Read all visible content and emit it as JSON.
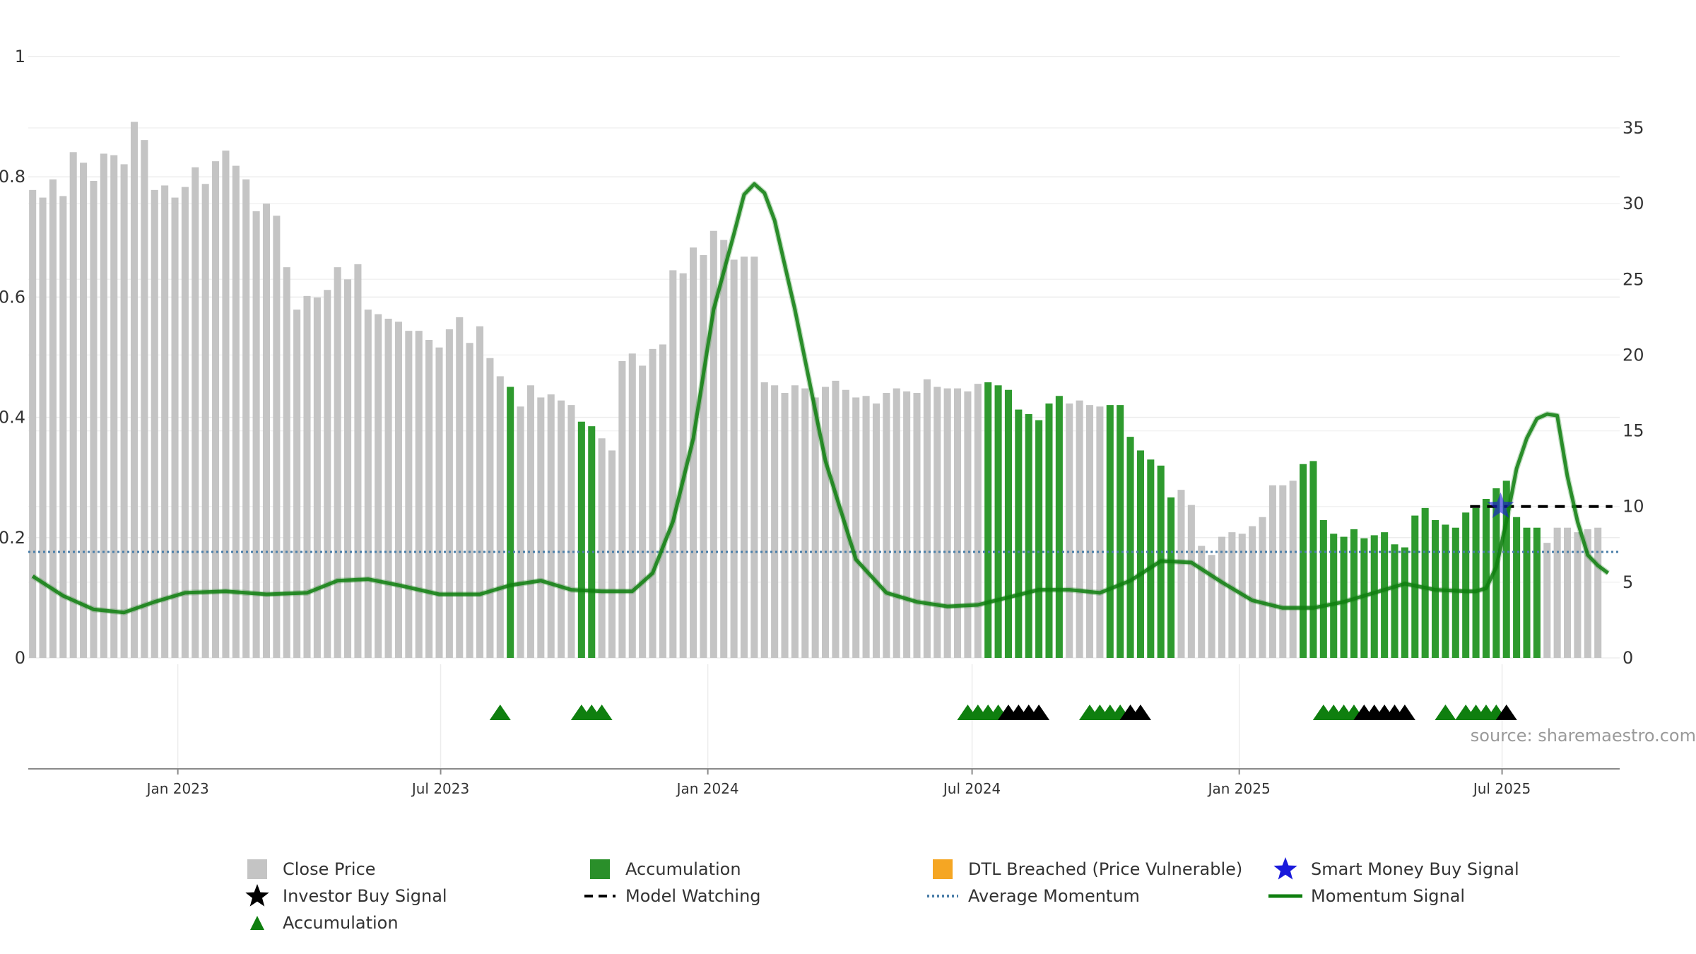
{
  "chart_data": {
    "type": "bar",
    "source_text": "source: sharemaestro.com",
    "left_axis": {
      "ticks": [
        "0",
        "0.2",
        "0.4",
        "0.6",
        "0.8",
        "1"
      ],
      "ylim": [
        0,
        1
      ]
    },
    "right_axis": {
      "ticks": [
        "0",
        "5",
        "10",
        "15",
        "20",
        "25",
        "30",
        "35"
      ],
      "ylim": [
        0,
        40
      ]
    },
    "x_ticks": [
      {
        "label": "Jan 2023",
        "date": "2023-01-01"
      },
      {
        "label": "Jul 2023",
        "date": "2023-07-01"
      },
      {
        "label": "Jan 2024",
        "date": "2024-01-01"
      },
      {
        "label": "Jul 2024",
        "date": "2024-07-01"
      },
      {
        "label": "Jan 2025",
        "date": "2025-01-01"
      },
      {
        "label": "Jul 2025",
        "date": "2025-07-01"
      }
    ],
    "xlim": [
      "2022-09-20",
      "2025-09-20"
    ],
    "grid": true,
    "colors": {
      "close": "#c4c4c4",
      "accumulation": "#2e9a2e",
      "momentum": "#0f7f0f",
      "average": "#4a7ea8",
      "dtl": "#f5a623",
      "smart_money": "#1a1adb",
      "investor": "#000000",
      "model_watching": "#000000"
    },
    "close_price": {
      "name": "Close Price",
      "start_date": "2022-09-23",
      "interval_days": 7,
      "values": [
        30.9,
        30.4,
        31.6,
        30.5,
        33.4,
        32.7,
        31.5,
        33.3,
        33.2,
        32.6,
        35.4,
        34.2,
        30.9,
        31.2,
        30.4,
        31.1,
        32.4,
        31.3,
        32.8,
        33.5,
        32.5,
        31.6,
        29.5,
        30.0,
        29.2,
        25.8,
        23.0,
        23.9,
        23.8,
        24.3,
        25.8,
        25.0,
        26.0,
        23.0,
        22.7,
        22.4,
        22.2,
        21.6,
        21.6,
        21.0,
        20.5,
        21.7,
        22.5,
        20.8,
        21.9,
        19.8,
        18.6,
        17.9,
        16.6,
        18.0,
        17.2,
        17.4,
        17.0,
        16.7,
        15.6,
        15.3,
        14.5,
        13.7,
        19.6,
        20.1,
        19.3,
        20.4,
        20.7,
        25.6,
        25.4,
        27.1,
        26.6,
        28.2,
        27.6,
        26.3,
        26.5,
        26.5,
        18.2,
        18.0,
        17.5,
        18.0,
        17.8,
        17.2,
        17.9,
        18.3,
        17.7,
        17.2,
        17.3,
        16.8,
        17.5,
        17.8,
        17.6,
        17.5,
        18.4,
        17.9,
        17.8,
        17.8,
        17.6,
        18.1,
        18.2,
        18.0,
        17.7,
        16.4,
        16.1,
        15.7,
        16.8,
        17.3,
        16.8,
        17.0,
        16.7,
        16.6,
        16.7,
        16.7,
        14.6,
        13.7,
        13.1,
        12.7,
        10.6,
        11.1,
        10.1,
        7.4,
        6.8,
        8.0,
        8.3,
        8.2,
        8.7,
        9.3,
        11.4,
        11.4,
        11.7,
        12.8,
        13.0,
        9.1,
        8.2,
        8.0,
        8.5,
        7.9,
        8.1,
        8.3,
        7.5,
        7.3,
        9.4,
        9.9,
        9.1,
        8.8,
        8.6,
        9.6,
        9.9,
        10.5,
        11.2,
        11.7,
        9.3,
        8.6,
        8.6,
        7.6,
        8.6,
        8.6,
        8.3,
        8.5,
        8.6
      ]
    },
    "accumulation_bar_indices": [
      47,
      54,
      55,
      94,
      95,
      96,
      97,
      98,
      99,
      100,
      101,
      106,
      107,
      108,
      109,
      110,
      111,
      112,
      125,
      126,
      127,
      128,
      129,
      130,
      131,
      132,
      133,
      134,
      135,
      136,
      137,
      138,
      139,
      140,
      141,
      142,
      143,
      144,
      145,
      146,
      147,
      148
    ],
    "momentum": {
      "name": "Momentum Signal",
      "points": [
        [
          "2022-09-23",
          5.4
        ],
        [
          "2022-10-14",
          4.1
        ],
        [
          "2022-11-04",
          3.2
        ],
        [
          "2022-11-25",
          3.0
        ],
        [
          "2022-12-16",
          3.7
        ],
        [
          "2023-01-06",
          4.3
        ],
        [
          "2023-02-03",
          4.4
        ],
        [
          "2023-03-03",
          4.2
        ],
        [
          "2023-03-31",
          4.3
        ],
        [
          "2023-04-21",
          5.1
        ],
        [
          "2023-05-12",
          5.2
        ],
        [
          "2023-06-02",
          4.8
        ],
        [
          "2023-06-30",
          4.2
        ],
        [
          "2023-07-28",
          4.2
        ],
        [
          "2023-08-18",
          4.8
        ],
        [
          "2023-09-08",
          5.1
        ],
        [
          "2023-09-29",
          4.5
        ],
        [
          "2023-10-20",
          4.4
        ],
        [
          "2023-11-10",
          4.4
        ],
        [
          "2023-11-24",
          5.6
        ],
        [
          "2023-12-08",
          9.0
        ],
        [
          "2023-12-22",
          14.5
        ],
        [
          "2024-01-05",
          23.0
        ],
        [
          "2024-01-19",
          28.0
        ],
        [
          "2024-01-26",
          30.6
        ],
        [
          "2024-02-02",
          31.3
        ],
        [
          "2024-02-09",
          30.7
        ],
        [
          "2024-02-16",
          28.9
        ],
        [
          "2024-03-01",
          23.0
        ],
        [
          "2024-03-22",
          13.0
        ],
        [
          "2024-04-12",
          6.5
        ],
        [
          "2024-05-03",
          4.3
        ],
        [
          "2024-05-24",
          3.7
        ],
        [
          "2024-06-14",
          3.4
        ],
        [
          "2024-07-05",
          3.5
        ],
        [
          "2024-07-26",
          4.0
        ],
        [
          "2024-08-16",
          4.5
        ],
        [
          "2024-09-06",
          4.5
        ],
        [
          "2024-09-27",
          4.3
        ],
        [
          "2024-10-18",
          5.1
        ],
        [
          "2024-11-08",
          6.4
        ],
        [
          "2024-11-29",
          6.3
        ],
        [
          "2024-12-20",
          5.0
        ],
        [
          "2025-01-10",
          3.8
        ],
        [
          "2025-01-31",
          3.3
        ],
        [
          "2025-02-21",
          3.3
        ],
        [
          "2025-03-14",
          3.7
        ],
        [
          "2025-04-04",
          4.3
        ],
        [
          "2025-04-25",
          4.9
        ],
        [
          "2025-05-16",
          4.5
        ],
        [
          "2025-06-06",
          4.4
        ],
        [
          "2025-06-13",
          4.4
        ],
        [
          "2025-06-20",
          4.6
        ],
        [
          "2025-06-27",
          6.0
        ],
        [
          "2025-07-04",
          9.0
        ],
        [
          "2025-07-11",
          12.5
        ],
        [
          "2025-07-18",
          14.5
        ],
        [
          "2025-07-25",
          15.8
        ],
        [
          "2025-08-01",
          16.1
        ],
        [
          "2025-08-08",
          16.0
        ],
        [
          "2025-08-15",
          12.0
        ],
        [
          "2025-08-22",
          9.0
        ],
        [
          "2025-08-29",
          6.8
        ],
        [
          "2025-09-05",
          6.1
        ],
        [
          "2025-09-12",
          5.6
        ]
      ]
    },
    "average_momentum": {
      "name": "Average Momentum",
      "value": 7.0
    },
    "model_watching": {
      "name": "Model Watching",
      "value": 10.0,
      "from": "2025-06-09",
      "to": "2025-09-15"
    },
    "smart_money_buy": {
      "name": "Smart Money Buy Signal",
      "date": "2025-06-30",
      "value": 10.0
    },
    "accumulation_markers": [
      "2023-08-11",
      "2023-10-06",
      "2023-10-13",
      "2023-10-20",
      "2024-06-28",
      "2024-07-05",
      "2024-07-12",
      "2024-07-19",
      "2024-09-20",
      "2024-09-27",
      "2024-10-04",
      "2024-10-11",
      "2025-02-28",
      "2025-03-07",
      "2025-03-14",
      "2025-03-21",
      "2025-05-23",
      "2025-06-06",
      "2025-06-13",
      "2025-06-20",
      "2025-06-27"
    ],
    "investor_buy_markers": [
      "2024-07-26",
      "2024-08-02",
      "2024-08-09",
      "2024-08-16",
      "2024-10-18",
      "2024-10-25",
      "2025-03-28",
      "2025-04-04",
      "2025-04-11",
      "2025-04-18",
      "2025-04-25",
      "2025-07-04"
    ],
    "legend": [
      {
        "label": "Close Price",
        "key": "close"
      },
      {
        "label": "Accumulation",
        "key": "acc-bar"
      },
      {
        "label": "DTL Breached (Price Vulnerable)",
        "key": "dtl"
      },
      {
        "label": "Smart Money Buy Signal",
        "key": "smart"
      },
      {
        "label": "Investor Buy Signal",
        "key": "investor"
      },
      {
        "label": "Model Watching",
        "key": "watching"
      },
      {
        "label": "Average Momentum",
        "key": "average"
      },
      {
        "label": "Momentum Signal",
        "key": "momentum"
      },
      {
        "label": "Accumulation",
        "key": "acc-tri"
      }
    ]
  }
}
